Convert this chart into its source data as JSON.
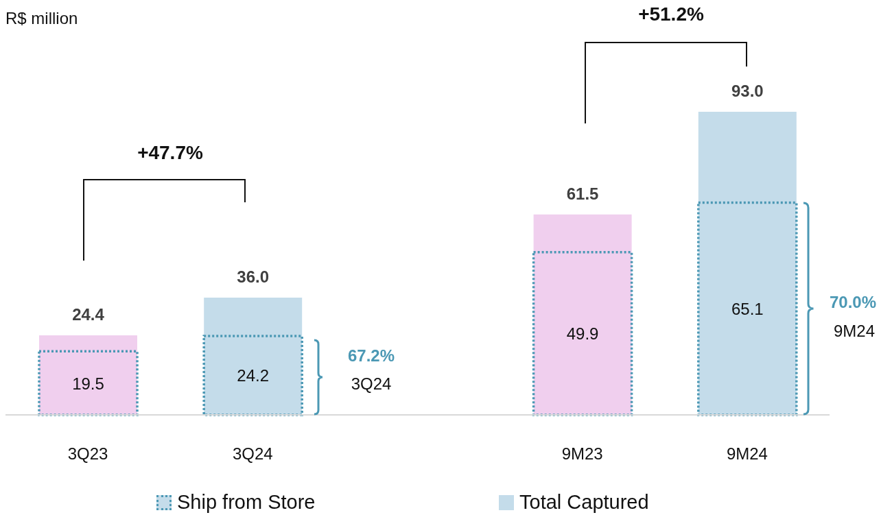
{
  "chart_data": {
    "type": "bar",
    "categories": [
      "3Q23",
      "3Q24",
      null,
      "9M23",
      "9M24"
    ],
    "series": [
      {
        "name": "Total Captured",
        "color": "#c4dcea",
        "colors": [
          "#f0cfee",
          "#c4dcea",
          null,
          "#f0cfee",
          "#c4dcea"
        ],
        "values": [
          24.4,
          36.0,
          null,
          61.5,
          93.0
        ],
        "value_labels": [
          "24.4",
          "36.0",
          null,
          "61.5",
          "93.0"
        ]
      },
      {
        "name": "Ship from Store",
        "type": "bar",
        "line_style": "dotted",
        "color": "#4b98b4",
        "values": [
          19.5,
          24.2,
          null,
          49.9,
          65.1
        ],
        "value_labels": [
          "19.5",
          "24.2",
          null,
          "49.9",
          "65.1"
        ]
      }
    ],
    "legend": "bottom",
    "annotations": [
      "R$ million",
      "+47.7%",
      "+51.2%",
      "67.2%",
      "3Q24",
      "70.0%",
      "9M24"
    ]
  }
}
